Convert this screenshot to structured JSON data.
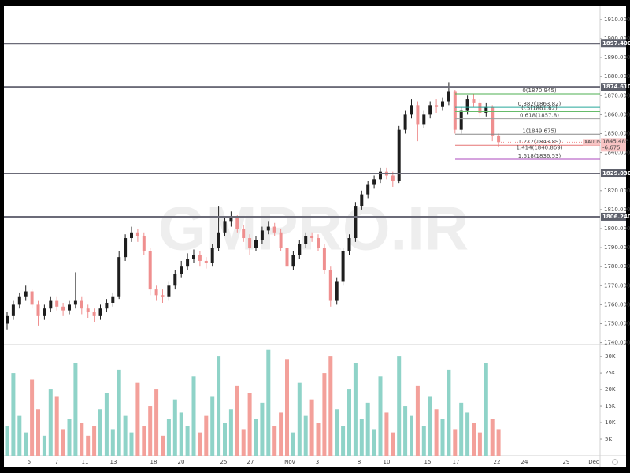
{
  "chart_data": {
    "type": "candlestick",
    "watermark": "GMPRO.IR",
    "up_color": "#1e1e1e",
    "down_color": "#ef8f8f",
    "volume_up_color": "#8fd3c8",
    "volume_down_color": "#f3a09a",
    "ylim": [
      1739,
      1917
    ],
    "yticks": [
      {
        "value": 1910,
        "label": "1910.000"
      },
      {
        "value": 1900,
        "label": "1900.000"
      },
      {
        "value": 1890,
        "label": "1890.000"
      },
      {
        "value": 1880,
        "label": "1880.000"
      },
      {
        "value": 1870,
        "label": "1870.000"
      },
      {
        "value": 1860,
        "label": "1860.000"
      },
      {
        "value": 1850,
        "label": "1850.000"
      },
      {
        "value": 1840,
        "label": "1840.000"
      },
      {
        "value": 1820,
        "label": "1820.000"
      },
      {
        "value": 1810,
        "label": "1810.000"
      },
      {
        "value": 1800,
        "label": "1800.000"
      },
      {
        "value": 1790,
        "label": "1790.000"
      },
      {
        "value": 1780,
        "label": "1780.000"
      },
      {
        "value": 1770,
        "label": "1770.000"
      },
      {
        "value": 1760,
        "label": "1760.000"
      },
      {
        "value": 1750,
        "label": "1750.000"
      },
      {
        "value": 1740,
        "label": "1740.000"
      }
    ],
    "levels": [
      {
        "value": 1897.4,
        "label": "1897.400"
      },
      {
        "value": 1874.61,
        "label": "1874.610"
      },
      {
        "value": 1829.03,
        "label": "1829.030"
      },
      {
        "value": 1806.24,
        "label": "1806.240"
      }
    ],
    "fib_levels": [
      {
        "value": 1870.945,
        "label": "0(1870.945)",
        "color": "#4caf50"
      },
      {
        "value": 1863.82,
        "label": "0.382(1863.82)",
        "color": "#26a69a"
      },
      {
        "value": 1861.62,
        "label": "0.5(1861.62)",
        "color": "#66bb6a"
      },
      {
        "value": 1857.8,
        "label": "0.618(1857.8)",
        "color": "#9e9e9e"
      },
      {
        "value": 1849.675,
        "label": "1(1849.675)",
        "color": "#888888"
      },
      {
        "value": 1843.89,
        "label": "1.272(1843.89)",
        "color": "#e57373"
      },
      {
        "value": 1840.869,
        "label": "1.414(1840.869)",
        "color": "#ef5350"
      },
      {
        "value": 1836.53,
        "label": "1.618(1836.53)",
        "color": "#ab47bc"
      }
    ],
    "last_price": {
      "symbol": "XAUUSD",
      "value": 1845.485,
      "label": "1845.485",
      "change": "-6.675"
    },
    "candles": [
      [
        1750,
        1756,
        1747,
        1754
      ],
      [
        1754,
        1762,
        1752,
        1760
      ],
      [
        1760,
        1766,
        1758,
        1764
      ],
      [
        1764,
        1770,
        1762,
        1767
      ],
      [
        1767,
        1768,
        1758,
        1760
      ],
      [
        1760,
        1762,
        1749,
        1754
      ],
      [
        1754,
        1760,
        1752,
        1758
      ],
      [
        1758,
        1764,
        1756,
        1762
      ],
      [
        1762,
        1764,
        1757,
        1759
      ],
      [
        1759,
        1761,
        1754,
        1757
      ],
      [
        1757,
        1762,
        1755,
        1760
      ],
      [
        1760,
        1777,
        1758,
        1762
      ],
      [
        1762,
        1764,
        1755,
        1758
      ],
      [
        1758,
        1760,
        1753,
        1756
      ],
      [
        1756,
        1758,
        1751,
        1754
      ],
      [
        1754,
        1760,
        1752,
        1758
      ],
      [
        1758,
        1763,
        1756,
        1761
      ],
      [
        1761,
        1766,
        1759,
        1764
      ],
      [
        1764,
        1788,
        1763,
        1785
      ],
      [
        1785,
        1797,
        1783,
        1795
      ],
      [
        1795,
        1801,
        1793,
        1798
      ],
      [
        1798,
        1800,
        1793,
        1796
      ],
      [
        1796,
        1798,
        1786,
        1788
      ],
      [
        1788,
        1790,
        1765,
        1768
      ],
      [
        1768,
        1770,
        1762,
        1765
      ],
      [
        1765,
        1768,
        1761,
        1764
      ],
      [
        1764,
        1772,
        1762,
        1770
      ],
      [
        1770,
        1778,
        1768,
        1776
      ],
      [
        1776,
        1783,
        1774,
        1780
      ],
      [
        1780,
        1787,
        1778,
        1784
      ],
      [
        1784,
        1789,
        1782,
        1786
      ],
      [
        1786,
        1788,
        1780,
        1783
      ],
      [
        1783,
        1785,
        1779,
        1782
      ],
      [
        1782,
        1792,
        1780,
        1790
      ],
      [
        1790,
        1812,
        1788,
        1798
      ],
      [
        1798,
        1806,
        1796,
        1804
      ],
      [
        1804,
        1809,
        1801,
        1806
      ],
      [
        1806,
        1807,
        1798,
        1800
      ],
      [
        1800,
        1802,
        1793,
        1795
      ],
      [
        1795,
        1797,
        1786,
        1790
      ],
      [
        1790,
        1796,
        1788,
        1794
      ],
      [
        1794,
        1801,
        1792,
        1799
      ],
      [
        1799,
        1804,
        1797,
        1801
      ],
      [
        1801,
        1803,
        1796,
        1798
      ],
      [
        1798,
        1800,
        1788,
        1790
      ],
      [
        1790,
        1792,
        1776,
        1780
      ],
      [
        1780,
        1788,
        1778,
        1786
      ],
      [
        1786,
        1794,
        1784,
        1792
      ],
      [
        1792,
        1798,
        1790,
        1796
      ],
      [
        1796,
        1798,
        1793,
        1795
      ],
      [
        1795,
        1797,
        1788,
        1790
      ],
      [
        1790,
        1792,
        1776,
        1778
      ],
      [
        1778,
        1780,
        1759,
        1762
      ],
      [
        1762,
        1774,
        1760,
        1772
      ],
      [
        1772,
        1790,
        1770,
        1788
      ],
      [
        1788,
        1797,
        1786,
        1795
      ],
      [
        1795,
        1814,
        1793,
        1812
      ],
      [
        1812,
        1820,
        1810,
        1818
      ],
      [
        1818,
        1825,
        1816,
        1823
      ],
      [
        1823,
        1828,
        1821,
        1826
      ],
      [
        1826,
        1832,
        1824,
        1830
      ],
      [
        1830,
        1832,
        1826,
        1828
      ],
      [
        1828,
        1830,
        1822,
        1825
      ],
      [
        1825,
        1854,
        1824,
        1852
      ],
      [
        1852,
        1862,
        1850,
        1860
      ],
      [
        1860,
        1868,
        1858,
        1865
      ],
      [
        1865,
        1867,
        1846,
        1855
      ],
      [
        1855,
        1862,
        1853,
        1860
      ],
      [
        1860,
        1867,
        1858,
        1865
      ],
      [
        1865,
        1868,
        1861,
        1864
      ],
      [
        1864,
        1869,
        1862,
        1867
      ],
      [
        1867,
        1877,
        1865,
        1872
      ],
      [
        1872,
        1873,
        1850,
        1852
      ],
      [
        1852,
        1864,
        1850,
        1862
      ],
      [
        1862,
        1870,
        1860,
        1868
      ],
      [
        1868,
        1871,
        1864,
        1866
      ],
      [
        1866,
        1868,
        1859,
        1861
      ],
      [
        1861,
        1866,
        1859,
        1864
      ],
      [
        1864,
        1865,
        1846,
        1849
      ],
      [
        1849,
        1850,
        1843,
        1845.5
      ]
    ],
    "volumes": [
      9000,
      25000,
      12000,
      7000,
      23000,
      14000,
      6000,
      20000,
      18000,
      8000,
      11000,
      28000,
      10000,
      6000,
      9000,
      14000,
      19000,
      8000,
      26000,
      12000,
      7000,
      22000,
      9000,
      15000,
      20000,
      6000,
      11000,
      17000,
      13000,
      9000,
      24000,
      7000,
      12000,
      18000,
      30000,
      10000,
      14000,
      21000,
      8000,
      19000,
      11000,
      16000,
      32000,
      9000,
      13000,
      29000,
      7000,
      22000,
      12000,
      17000,
      10000,
      25000,
      30000,
      14000,
      9000,
      20000,
      28000,
      11000,
      16000,
      8000,
      24000,
      13000,
      7000,
      30000,
      15000,
      12000,
      21000,
      9000,
      18000,
      14000,
      11000,
      26000,
      8000,
      16000,
      13000,
      10000,
      7000,
      28000,
      11000,
      8000
    ],
    "vol_ylim": [
      0,
      33600
    ],
    "vol_yticks": [
      {
        "value": 5000,
        "label": "5K"
      },
      {
        "value": 10000,
        "label": "10K"
      },
      {
        "value": 15000,
        "label": "15K"
      },
      {
        "value": 20000,
        "label": "20K"
      },
      {
        "value": 25000,
        "label": "25K"
      },
      {
        "value": 30000,
        "label": "30K"
      }
    ],
    "x_labels": [
      "5",
      "7",
      "11",
      "13",
      "18",
      "20",
      "25",
      "27",
      "Nov",
      "3",
      "8",
      "10",
      "15",
      "17",
      "22",
      "24",
      "29",
      "Dec"
    ]
  }
}
